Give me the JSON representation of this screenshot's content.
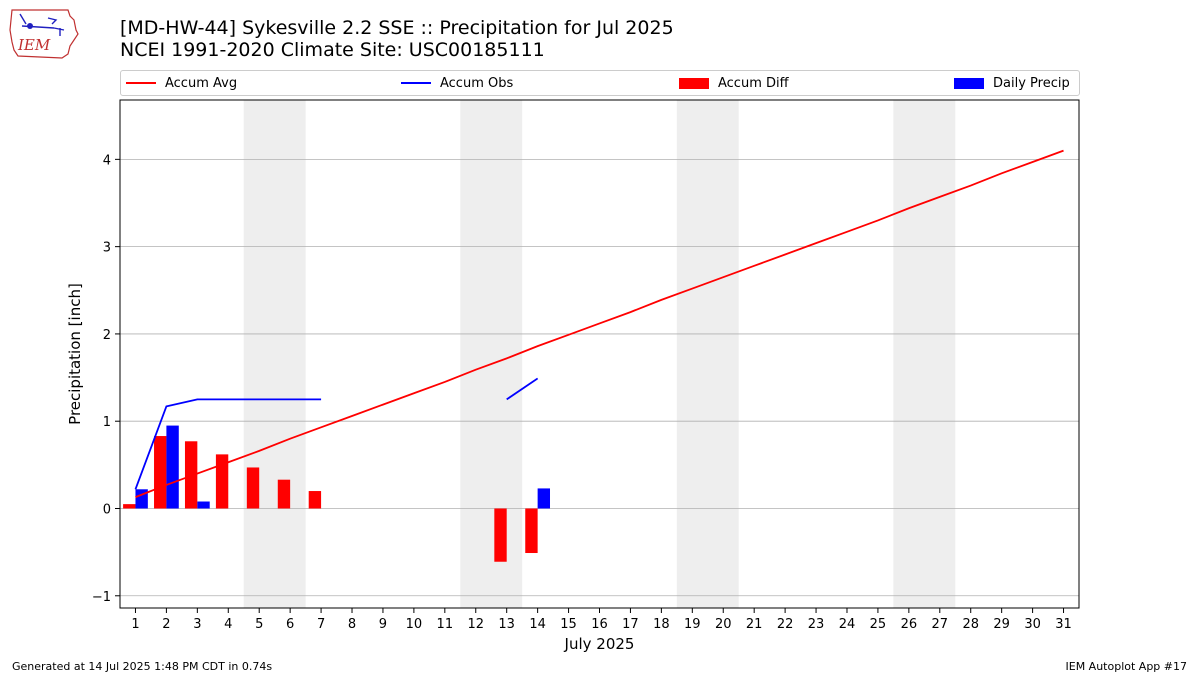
{
  "logo": {
    "text": "IEM"
  },
  "title": {
    "line1": "[MD-HW-44] Sykesville 2.2 SSE :: Precipitation for Jul 2025",
    "line2": "NCEI 1991-2020 Climate Site: USC00185111"
  },
  "legend": [
    {
      "label": "Accum Avg",
      "color": "#ff0000",
      "kind": "line"
    },
    {
      "label": "Accum Obs",
      "color": "#0000ff",
      "kind": "line"
    },
    {
      "label": "Accum Diff",
      "color": "#ff0000",
      "kind": "box"
    },
    {
      "label": "Daily Precip",
      "color": "#0000ff",
      "kind": "box"
    }
  ],
  "footer": {
    "left": "Generated at 14 Jul 2025 1:48 PM CDT in 0.74s",
    "right": "IEM Autoplot App #17"
  },
  "chart_data": {
    "type": "bar",
    "xlabel": "July 2025",
    "ylabel": "Precipitation [inch]",
    "ylim": [
      -1.14,
      4.68
    ],
    "xlim": [
      0.5,
      31.5
    ],
    "yticks": [
      -1,
      0,
      1,
      2,
      3,
      4
    ],
    "x": [
      1,
      2,
      3,
      4,
      5,
      6,
      7,
      8,
      9,
      10,
      11,
      12,
      13,
      14,
      15,
      16,
      17,
      18,
      19,
      20,
      21,
      22,
      23,
      24,
      25,
      26,
      27,
      28,
      29,
      30,
      31
    ],
    "weekend_shading": [
      [
        4.5,
        6.5
      ],
      [
        11.5,
        13.5
      ],
      [
        18.5,
        20.5
      ],
      [
        25.5,
        27.5
      ]
    ],
    "grid": "horizontal",
    "colors": {
      "avg": "#ff0000",
      "obs": "#0000ff",
      "diff": "#ff0000",
      "daily": "#0000ff",
      "shade": "#eeeeee",
      "grid": "#b0b0b0"
    },
    "accum_avg": [
      0.13,
      0.27,
      0.4,
      0.53,
      0.66,
      0.8,
      0.93,
      1.06,
      1.19,
      1.32,
      1.45,
      1.59,
      1.72,
      1.86,
      1.99,
      2.12,
      2.25,
      2.39,
      2.52,
      2.65,
      2.78,
      2.91,
      3.04,
      3.17,
      3.3,
      3.44,
      3.57,
      3.7,
      3.84,
      3.97,
      4.1
    ],
    "accum_obs": [
      0.22,
      1.17,
      1.25,
      1.25,
      1.25,
      1.25,
      1.25,
      null,
      null,
      null,
      null,
      null,
      1.25,
      1.49,
      null,
      null,
      null,
      null,
      null,
      null,
      null,
      null,
      null,
      null,
      null,
      null,
      null,
      null,
      null,
      null,
      null
    ],
    "accum_diff": [
      0.05,
      0.83,
      0.77,
      0.62,
      0.47,
      0.33,
      0.2,
      null,
      null,
      null,
      null,
      null,
      -0.61,
      -0.51,
      null,
      null,
      null,
      null,
      null,
      null,
      null,
      null,
      null,
      null,
      null,
      null,
      null,
      null,
      null,
      null,
      null
    ],
    "daily_precip": [
      0.22,
      0.95,
      0.08,
      0.0,
      0.0,
      0.0,
      0.0,
      null,
      null,
      null,
      null,
      null,
      0.0,
      0.23,
      null,
      null,
      null,
      null,
      null,
      null,
      null,
      null,
      null,
      null,
      null,
      null,
      null,
      null,
      null,
      null,
      null
    ]
  }
}
